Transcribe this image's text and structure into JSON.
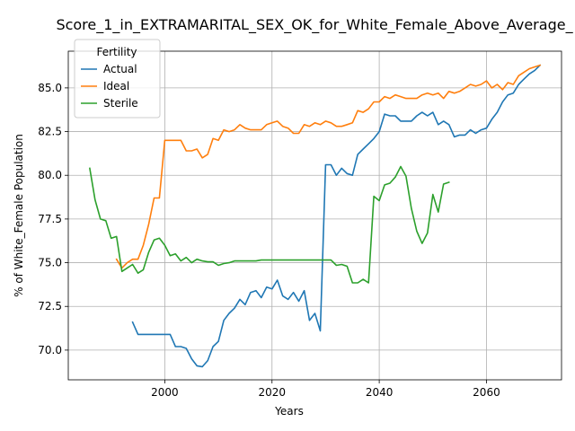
{
  "chart_data": {
    "type": "line",
    "title": "Score_1_in_EXTRAMARITAL_SEX_OK_for_White_Female_Above_Average_",
    "xlabel": "Years",
    "ylabel": "% of White_Female Population",
    "xlim": [
      2882,
      2886
    ],
    "xrange": [
      1982,
      2074
    ],
    "ylim": [
      68.3,
      87.1
    ],
    "xticks": [
      2000,
      2020,
      2040,
      2060
    ],
    "xtick_labels": [
      "2000",
      "2020",
      "2040",
      "2060"
    ],
    "yticks": [
      70.0,
      72.5,
      75.0,
      77.5,
      80.0,
      82.5,
      85.0
    ],
    "ytick_labels": [
      "70.0",
      "72.5",
      "75.0",
      "77.5",
      "80.0",
      "82.5",
      "85.0"
    ],
    "grid": true,
    "legend": {
      "title": "Fertility",
      "placement": "top-left"
    },
    "series": [
      {
        "name": "Actual",
        "color": "#1f77b4",
        "points": [
          [
            1994,
            71.6
          ],
          [
            1995,
            70.9
          ],
          [
            1996,
            70.9
          ],
          [
            1997,
            70.9
          ],
          [
            1998,
            70.9
          ],
          [
            1999,
            70.9
          ],
          [
            2000,
            70.9
          ],
          [
            2001,
            70.9
          ],
          [
            2002,
            70.2
          ],
          [
            2003,
            70.2
          ],
          [
            2004,
            70.1
          ],
          [
            2005,
            69.5
          ],
          [
            2006,
            69.1
          ],
          [
            2007,
            69.05
          ],
          [
            2008,
            69.4
          ],
          [
            2009,
            70.2
          ],
          [
            2010,
            70.5
          ],
          [
            2011,
            71.7
          ],
          [
            2012,
            72.1
          ],
          [
            2013,
            72.4
          ],
          [
            2014,
            72.9
          ],
          [
            2015,
            72.6
          ],
          [
            2016,
            73.3
          ],
          [
            2017,
            73.4
          ],
          [
            2018,
            73.0
          ],
          [
            2019,
            73.6
          ],
          [
            2020,
            73.5
          ],
          [
            2021,
            74.0
          ],
          [
            2022,
            73.1
          ],
          [
            2023,
            72.9
          ],
          [
            2024,
            73.3
          ],
          [
            2025,
            72.8
          ],
          [
            2026,
            73.4
          ],
          [
            2027,
            71.7
          ],
          [
            2028,
            72.1
          ],
          [
            2029,
            71.1
          ],
          [
            2030,
            80.6
          ],
          [
            2031,
            80.6
          ],
          [
            2032,
            80.0
          ],
          [
            2033,
            80.4
          ],
          [
            2034,
            80.1
          ],
          [
            2035,
            80.0
          ],
          [
            2036,
            81.2
          ],
          [
            2037,
            81.5
          ],
          [
            2038,
            81.8
          ],
          [
            2039,
            82.1
          ],
          [
            2040,
            82.5
          ],
          [
            2041,
            83.5
          ],
          [
            2042,
            83.4
          ],
          [
            2043,
            83.4
          ],
          [
            2044,
            83.1
          ],
          [
            2045,
            83.1
          ],
          [
            2046,
            83.1
          ],
          [
            2047,
            83.4
          ],
          [
            2048,
            83.6
          ],
          [
            2049,
            83.4
          ],
          [
            2050,
            83.6
          ],
          [
            2051,
            82.9
          ],
          [
            2052,
            83.1
          ],
          [
            2053,
            82.9
          ],
          [
            2054,
            82.2
          ],
          [
            2055,
            82.3
          ],
          [
            2056,
            82.3
          ],
          [
            2057,
            82.6
          ],
          [
            2058,
            82.4
          ],
          [
            2059,
            82.6
          ],
          [
            2060,
            82.7
          ],
          [
            2061,
            83.2
          ],
          [
            2062,
            83.6
          ],
          [
            2063,
            84.2
          ],
          [
            2064,
            84.6
          ],
          [
            2065,
            84.7
          ],
          [
            2066,
            85.2
          ],
          [
            2067,
            85.5
          ],
          [
            2068,
            85.8
          ],
          [
            2069,
            86.0
          ],
          [
            2070,
            86.3
          ]
        ]
      },
      {
        "name": "Ideal",
        "color": "#ff7f0e",
        "points": [
          [
            1991,
            75.2
          ],
          [
            1992,
            74.7
          ],
          [
            1993,
            75.0
          ],
          [
            1994,
            75.2
          ],
          [
            1995,
            75.2
          ],
          [
            1996,
            76.0
          ],
          [
            1997,
            77.2
          ],
          [
            1998,
            78.7
          ],
          [
            1999,
            78.7
          ],
          [
            2000,
            82.0
          ],
          [
            2001,
            82.0
          ],
          [
            2002,
            82.0
          ],
          [
            2003,
            82.0
          ],
          [
            2004,
            81.4
          ],
          [
            2005,
            81.4
          ],
          [
            2006,
            81.5
          ],
          [
            2007,
            81.0
          ],
          [
            2008,
            81.2
          ],
          [
            2009,
            82.1
          ],
          [
            2010,
            82.0
          ],
          [
            2011,
            82.6
          ],
          [
            2012,
            82.5
          ],
          [
            2013,
            82.6
          ],
          [
            2014,
            82.9
          ],
          [
            2015,
            82.7
          ],
          [
            2016,
            82.6
          ],
          [
            2017,
            82.6
          ],
          [
            2018,
            82.6
          ],
          [
            2019,
            82.9
          ],
          [
            2020,
            83.0
          ],
          [
            2021,
            83.1
          ],
          [
            2022,
            82.8
          ],
          [
            2023,
            82.7
          ],
          [
            2024,
            82.4
          ],
          [
            2025,
            82.4
          ],
          [
            2026,
            82.9
          ],
          [
            2027,
            82.8
          ],
          [
            2028,
            83.0
          ],
          [
            2029,
            82.9
          ],
          [
            2030,
            83.1
          ],
          [
            2031,
            83.0
          ],
          [
            2032,
            82.8
          ],
          [
            2033,
            82.8
          ],
          [
            2034,
            82.9
          ],
          [
            2035,
            83.0
          ],
          [
            2036,
            83.7
          ],
          [
            2037,
            83.6
          ],
          [
            2038,
            83.8
          ],
          [
            2039,
            84.2
          ],
          [
            2040,
            84.2
          ],
          [
            2041,
            84.5
          ],
          [
            2042,
            84.4
          ],
          [
            2043,
            84.6
          ],
          [
            2044,
            84.5
          ],
          [
            2045,
            84.4
          ],
          [
            2046,
            84.4
          ],
          [
            2047,
            84.4
          ],
          [
            2048,
            84.6
          ],
          [
            2049,
            84.7
          ],
          [
            2050,
            84.6
          ],
          [
            2051,
            84.7
          ],
          [
            2052,
            84.4
          ],
          [
            2053,
            84.8
          ],
          [
            2054,
            84.7
          ],
          [
            2055,
            84.8
          ],
          [
            2056,
            85.0
          ],
          [
            2057,
            85.2
          ],
          [
            2058,
            85.1
          ],
          [
            2059,
            85.2
          ],
          [
            2060,
            85.4
          ],
          [
            2061,
            85.0
          ],
          [
            2062,
            85.2
          ],
          [
            2063,
            84.9
          ],
          [
            2064,
            85.3
          ],
          [
            2065,
            85.2
          ],
          [
            2066,
            85.7
          ],
          [
            2067,
            85.9
          ],
          [
            2068,
            86.1
          ],
          [
            2069,
            86.2
          ],
          [
            2070,
            86.3
          ]
        ]
      },
      {
        "name": "Sterile",
        "color": "#2ca02c",
        "points": [
          [
            1986,
            80.4
          ],
          [
            1987,
            78.6
          ],
          [
            1988,
            77.5
          ],
          [
            1989,
            77.4
          ],
          [
            1990,
            76.4
          ],
          [
            1991,
            76.5
          ],
          [
            1992,
            74.5
          ],
          [
            1993,
            74.7
          ],
          [
            1994,
            74.9
          ],
          [
            1995,
            74.4
          ],
          [
            1996,
            74.6
          ],
          [
            1997,
            75.6
          ],
          [
            1998,
            76.3
          ],
          [
            1999,
            76.4
          ],
          [
            2000,
            76.0
          ],
          [
            2001,
            75.4
          ],
          [
            2002,
            75.5
          ],
          [
            2003,
            75.1
          ],
          [
            2004,
            75.3
          ],
          [
            2005,
            75.0
          ],
          [
            2006,
            75.2
          ],
          [
            2007,
            75.1
          ],
          [
            2008,
            75.05
          ],
          [
            2009,
            75.05
          ],
          [
            2010,
            74.85
          ],
          [
            2011,
            74.95
          ],
          [
            2012,
            75.0
          ],
          [
            2013,
            75.1
          ],
          [
            2014,
            75.1
          ],
          [
            2015,
            75.1
          ],
          [
            2016,
            75.1
          ],
          [
            2017,
            75.1
          ],
          [
            2018,
            75.15
          ],
          [
            2019,
            75.15
          ],
          [
            2020,
            75.15
          ],
          [
            2021,
            75.15
          ],
          [
            2022,
            75.15
          ],
          [
            2023,
            75.15
          ],
          [
            2024,
            75.15
          ],
          [
            2025,
            75.15
          ],
          [
            2026,
            75.15
          ],
          [
            2027,
            75.15
          ],
          [
            2028,
            75.15
          ],
          [
            2029,
            75.15
          ],
          [
            2030,
            75.15
          ],
          [
            2031,
            75.15
          ],
          [
            2032,
            74.85
          ],
          [
            2033,
            74.9
          ],
          [
            2034,
            74.8
          ],
          [
            2035,
            73.85
          ],
          [
            2036,
            73.85
          ],
          [
            2037,
            74.05
          ],
          [
            2038,
            73.85
          ],
          [
            2039,
            78.8
          ],
          [
            2040,
            78.55
          ],
          [
            2041,
            79.45
          ],
          [
            2042,
            79.55
          ],
          [
            2043,
            79.9
          ],
          [
            2044,
            80.5
          ],
          [
            2045,
            79.95
          ],
          [
            2046,
            78.1
          ],
          [
            2047,
            76.8
          ],
          [
            2048,
            76.1
          ],
          [
            2049,
            76.7
          ],
          [
            2050,
            78.9
          ],
          [
            2051,
            77.9
          ],
          [
            2052,
            79.5
          ],
          [
            2053,
            79.6
          ]
        ]
      }
    ]
  }
}
